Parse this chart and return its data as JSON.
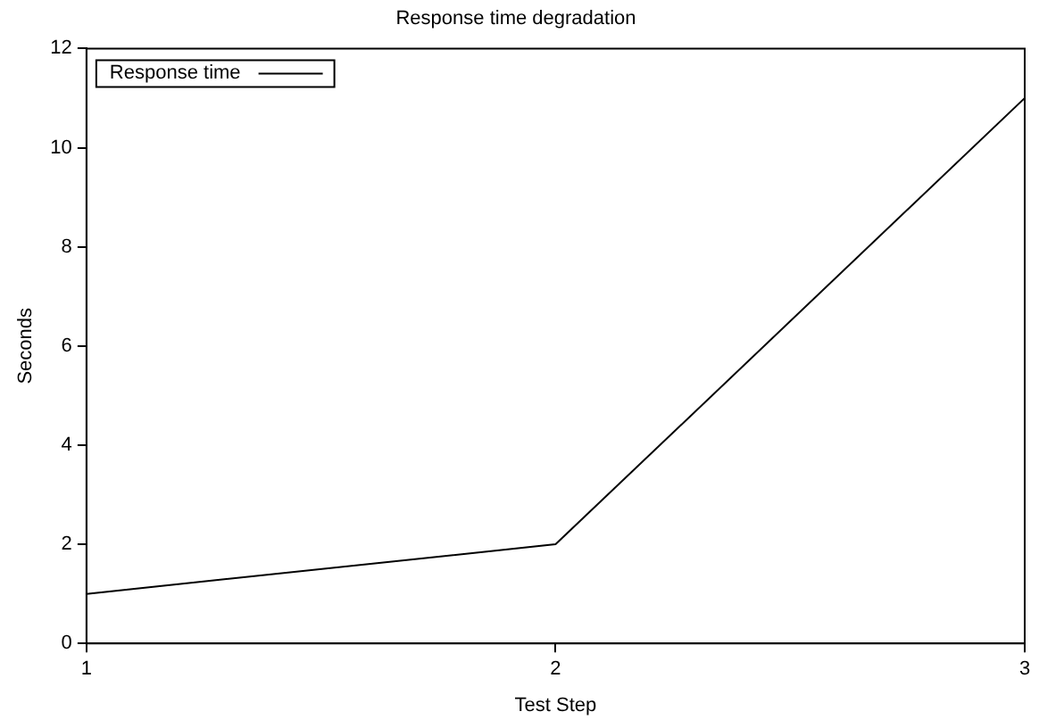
{
  "chart_data": {
    "type": "line",
    "title": "Response time degradation",
    "xlabel": "Test Step",
    "ylabel": "Seconds",
    "x": [
      1,
      2,
      3
    ],
    "series": [
      {
        "name": "Response time",
        "color": "#000000",
        "values": [
          1,
          2,
          11
        ]
      }
    ],
    "xlim": [
      1,
      3
    ],
    "xticks": [
      1,
      2,
      3
    ],
    "ylim": [
      0,
      12
    ],
    "yticks": [
      0,
      2,
      4,
      6,
      8,
      10,
      12
    ],
    "grid": false,
    "legend": "top left",
    "marker": "none",
    "line_style": "solid"
  }
}
